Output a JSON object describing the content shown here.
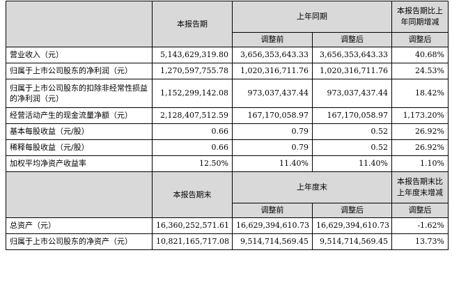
{
  "table1": {
    "header": {
      "current": "本报告期",
      "prior_group": "上年同期",
      "change": "本报告期比上年同期增减",
      "before_adj": "调整前",
      "after_adj": "调整后",
      "change_adj": "调整后"
    },
    "rows": [
      {
        "label": "营业收入（元）",
        "current": "5,143,629,319.80",
        "before": "3,656,353,643.33",
        "after": "3,656,353,643.33",
        "change": "40.68%"
      },
      {
        "label": "归属于上市公司股东的净利润（元）",
        "current": "1,270,597,755.78",
        "before": "1,020,316,711.76",
        "after": "1,020,316,711.76",
        "change": "24.53%"
      },
      {
        "label": "归属于上市公司股东的扣除非经常性损益的净利润（元）",
        "current": "1,152,299,142.08",
        "before": "973,037,437.44",
        "after": "973,037,437.44",
        "change": "18.42%"
      },
      {
        "label": "经营活动产生的现金流量净额（元）",
        "current": "2,128,407,512.59",
        "before": "167,170,058.97",
        "after": "167,170,058.97",
        "change": "1,173.20%"
      },
      {
        "label": "基本每股收益（元/股）",
        "current": "0.66",
        "before": "0.79",
        "after": "0.52",
        "change": "26.92%"
      },
      {
        "label": "稀释每股收益（元/股）",
        "current": "0.66",
        "before": "0.79",
        "after": "0.52",
        "change": "26.92%"
      },
      {
        "label": "加权平均净资产收益率",
        "current": "12.50%",
        "before": "11.40%",
        "after": "11.40%",
        "change": "1.10%"
      }
    ]
  },
  "table2": {
    "header": {
      "current": "本报告期末",
      "prior_group": "上年度末",
      "change": "本报告期末比上年度末增减",
      "before_adj": "调整前",
      "after_adj": "调整后",
      "change_adj": "调整后"
    },
    "rows": [
      {
        "label": "总资产（元）",
        "current": "16,360,252,571.61",
        "before": "16,629,394,610.73",
        "after": "16,629,394,610.73",
        "change": "-1.62%"
      },
      {
        "label": "归属于上市公司股东的净资产（元）",
        "current": "10,821,165,717.08",
        "before": "9,514,714,569.45",
        "after": "9,514,714,569.45",
        "change": "13.73%"
      }
    ]
  }
}
